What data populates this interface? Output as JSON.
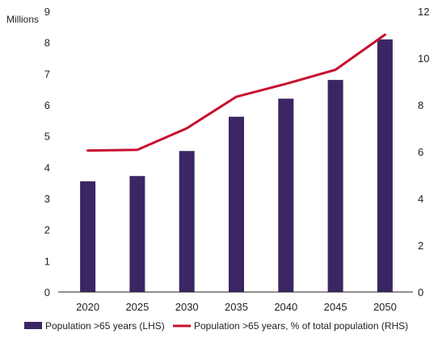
{
  "colors": {
    "bar": "#3b2663",
    "line": "#c8102e",
    "axis": "#222222"
  },
  "chart_data": {
    "type": "bar",
    "categories": [
      "2020",
      "2025",
      "2030",
      "2035",
      "2040",
      "2045",
      "2050"
    ],
    "left_axis_label": "Millions",
    "series": [
      {
        "name": "Population >65 years (LHS)",
        "type": "bar",
        "axis": "left",
        "values": [
          3.55,
          3.72,
          4.52,
          5.62,
          6.2,
          6.8,
          8.1
        ]
      },
      {
        "name": "Population >65 years, % of total population (RHS)",
        "type": "line",
        "axis": "right",
        "values": [
          6.05,
          6.08,
          7.0,
          8.35,
          8.9,
          9.5,
          11.0
        ]
      }
    ],
    "ylim_left": [
      0,
      9
    ],
    "yticks_left": [
      "0",
      "1",
      "2",
      "3",
      "4",
      "5",
      "6",
      "7",
      "8",
      "9"
    ],
    "ylim_right": [
      0,
      12
    ],
    "yticks_right": [
      "0",
      "2",
      "4",
      "6",
      "8",
      "10",
      "12"
    ],
    "grid": false,
    "legend_position": "bottom"
  }
}
